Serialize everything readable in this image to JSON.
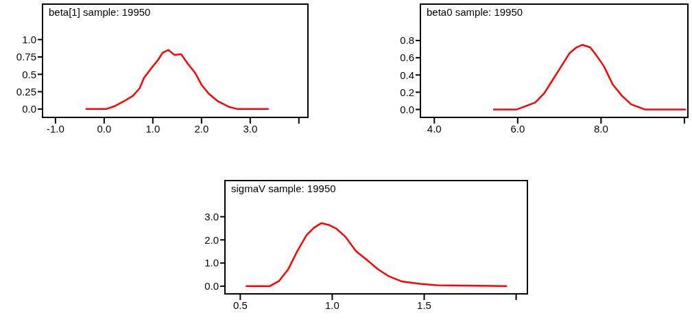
{
  "chart_data": [
    {
      "type": "line",
      "title": "beta[1] sample: 19950",
      "color": "#ff0000",
      "x": [
        -0.38,
        0.04,
        0.21,
        0.4,
        0.59,
        0.73,
        0.82,
        0.96,
        1.11,
        1.2,
        1.32,
        1.44,
        1.58,
        1.72,
        1.86,
        2.0,
        2.15,
        2.34,
        2.57,
        2.74,
        3.38
      ],
      "values": [
        0,
        0,
        0.04,
        0.11,
        0.19,
        0.3,
        0.45,
        0.58,
        0.71,
        0.81,
        0.85,
        0.78,
        0.79,
        0.65,
        0.53,
        0.35,
        0.22,
        0.11,
        0.03,
        0,
        0
      ],
      "xlim": [
        -1.28,
        4.2
      ],
      "ylim": [
        -0.13,
        1.52
      ],
      "xticks": [
        {
          "value": -1,
          "label": "-1.0"
        },
        {
          "value": 0,
          "label": "0.0"
        },
        {
          "value": 1,
          "label": "1.0"
        },
        {
          "value": 2,
          "label": "2.0"
        },
        {
          "value": 3,
          "label": "3.0"
        },
        {
          "value": 4,
          "label": null
        }
      ],
      "yticks": [
        {
          "value": 0,
          "label": "0.0"
        },
        0.25,
        0.5,
        0.75,
        {
          "value": 1,
          "label": "1.0"
        }
      ]
    },
    {
      "type": "line",
      "title": "beta0 sample: 19950",
      "color": "#ff0000",
      "x": [
        5.41,
        5.98,
        6.2,
        6.42,
        6.64,
        6.81,
        7.02,
        7.24,
        7.41,
        7.55,
        7.74,
        7.9,
        8.07,
        8.28,
        8.5,
        8.72,
        9.05,
        10.04
      ],
      "values": [
        0,
        0,
        0.04,
        0.08,
        0.19,
        0.32,
        0.48,
        0.65,
        0.72,
        0.75,
        0.72,
        0.62,
        0.5,
        0.29,
        0.16,
        0.06,
        0,
        0
      ],
      "xlim": [
        3.65,
        10.1
      ],
      "ylim": [
        -0.1,
        1.23
      ],
      "xticks": [
        {
          "value": 4,
          "label": "4.0"
        },
        {
          "value": 6,
          "label": "6.0"
        },
        {
          "value": 8,
          "label": "8.0"
        },
        {
          "value": 10,
          "label": null
        }
      ],
      "yticks": [
        {
          "value": 0,
          "label": "0.0"
        },
        0.2,
        0.4,
        0.6,
        0.8
      ]
    },
    {
      "type": "line",
      "title": "sigmaV sample: 19950",
      "color": "#ff0000",
      "x": [
        0.53,
        0.66,
        0.71,
        0.76,
        0.81,
        0.86,
        0.9,
        0.94,
        0.98,
        1.02,
        1.07,
        1.13,
        1.2,
        1.25,
        1.31,
        1.38,
        1.48,
        1.57,
        1.95
      ],
      "values": [
        0,
        0,
        0.22,
        0.72,
        1.51,
        2.2,
        2.52,
        2.72,
        2.65,
        2.5,
        2.15,
        1.51,
        1.06,
        0.72,
        0.42,
        0.2,
        0.1,
        0.04,
        0
      ],
      "xlim": [
        0.413,
        2.065
      ],
      "ylim": [
        -0.36,
        4.59
      ],
      "xticks": [
        0.5,
        {
          "value": 1,
          "label": "1.0"
        },
        1.5,
        {
          "value": 2,
          "label": null
        }
      ],
      "yticks": [
        {
          "value": 0,
          "label": "0.0"
        },
        {
          "value": 1,
          "label": "1.0"
        },
        {
          "value": 2,
          "label": "2.0"
        },
        {
          "value": 3,
          "label": "3.0"
        }
      ]
    }
  ]
}
